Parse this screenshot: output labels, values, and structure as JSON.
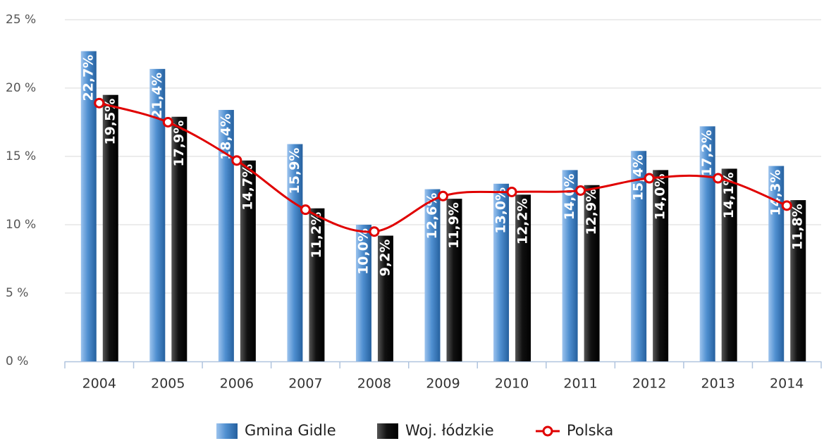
{
  "chart_data": {
    "type": "bar",
    "categories": [
      "2004",
      "2005",
      "2006",
      "2007",
      "2008",
      "2009",
      "2010",
      "2011",
      "2012",
      "2013",
      "2014"
    ],
    "series": [
      {
        "name": "Gmina Gidle",
        "color": "#3d7ebf",
        "type": "bar",
        "values": [
          22.7,
          21.4,
          18.4,
          15.9,
          10.0,
          12.6,
          13.0,
          14.0,
          15.4,
          17.2,
          14.3
        ],
        "value_labels": [
          "22,7%",
          "21,4%",
          "18,4%",
          "15,9%",
          "10,0%",
          "12,6%",
          "13,0%",
          "14,0%",
          "15,4%",
          "17,2%",
          "14,3%"
        ]
      },
      {
        "name": "Woj. łódzkie",
        "color": "#111111",
        "type": "bar",
        "values": [
          19.5,
          17.9,
          14.7,
          11.2,
          9.2,
          11.9,
          12.2,
          12.9,
          14.0,
          14.1,
          11.8
        ],
        "value_labels": [
          "19,5%",
          "17,9%",
          "14,7%",
          "11,2%",
          "9,2%",
          "11,9%",
          "12,2%",
          "12,9%",
          "14,0%",
          "14,1%",
          "11,8%"
        ]
      },
      {
        "name": "Polska",
        "color": "#e00000",
        "type": "line",
        "values": [
          18.9,
          17.5,
          14.7,
          11.1,
          9.5,
          12.1,
          12.4,
          12.5,
          13.4,
          13.4,
          11.4
        ]
      }
    ],
    "ylim": [
      0,
      25
    ],
    "yticks": [
      {
        "value": 0,
        "label": "0 %"
      },
      {
        "value": 5,
        "label": "5 %"
      },
      {
        "value": 10,
        "label": "10 %"
      },
      {
        "value": 15,
        "label": "15 %"
      },
      {
        "value": 20,
        "label": "20 %"
      },
      {
        "value": 25,
        "label": "25 %"
      }
    ],
    "grid": true,
    "legend": "bottom"
  }
}
